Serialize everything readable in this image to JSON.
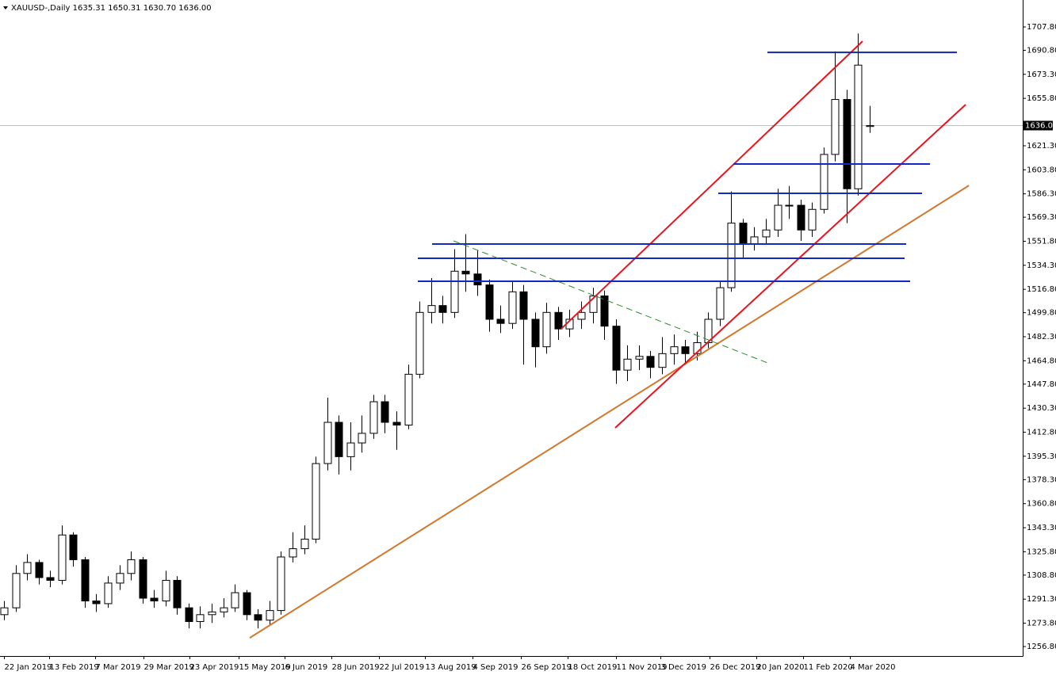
{
  "chart_data": {
    "type": "candlestick",
    "title": "XAUUSD-,Daily  1635.31 1650.31 1630.70 1636.00",
    "candles": {
      "open": [
        1280,
        1285,
        1310,
        1318,
        1307,
        1305,
        1338,
        1320,
        1290,
        1288,
        1303,
        1310,
        1320,
        1292,
        1290,
        1305,
        1285,
        1275,
        1280,
        1282,
        1285,
        1296,
        1280,
        1276,
        1283,
        1322,
        1328,
        1335,
        1390,
        1420,
        1395,
        1405,
        1412,
        1435,
        1420,
        1418,
        1455,
        1500,
        1505,
        1500,
        1530,
        1528,
        1520,
        1495,
        1492,
        1515,
        1495,
        1475,
        1500,
        1488,
        1495,
        1500,
        1512,
        1490,
        1458,
        1466,
        1468,
        1460,
        1470,
        1475,
        1470,
        1478,
        1495,
        1518,
        1565,
        1550,
        1555,
        1560,
        1578,
        1578,
        1560,
        1575,
        1615,
        1655,
        1590,
        1635.31
      ],
      "high": [
        1290,
        1316,
        1324,
        1320,
        1312,
        1345,
        1340,
        1322,
        1295,
        1308,
        1316,
        1326,
        1322,
        1298,
        1312,
        1308,
        1288,
        1286,
        1288,
        1292,
        1302,
        1298,
        1284,
        1290,
        1326,
        1340,
        1345,
        1395,
        1438,
        1425,
        1420,
        1425,
        1440,
        1440,
        1428,
        1462,
        1508,
        1525,
        1512,
        1546,
        1557,
        1545,
        1524,
        1505,
        1522,
        1520,
        1500,
        1507,
        1504,
        1502,
        1508,
        1518,
        1516,
        1495,
        1476,
        1476,
        1472,
        1482,
        1484,
        1480,
        1486,
        1500,
        1522,
        1588,
        1568,
        1562,
        1568,
        1590,
        1592,
        1582,
        1580,
        1620,
        1690,
        1662,
        1703,
        1650.31
      ],
      "low": [
        1276,
        1282,
        1305,
        1302,
        1300,
        1302,
        1315,
        1285,
        1282,
        1285,
        1298,
        1305,
        1288,
        1285,
        1286,
        1280,
        1270,
        1270,
        1274,
        1278,
        1282,
        1276,
        1270,
        1272,
        1280,
        1318,
        1324,
        1332,
        1385,
        1382,
        1385,
        1398,
        1408,
        1412,
        1400,
        1415,
        1452,
        1492,
        1492,
        1496,
        1515,
        1512,
        1486,
        1485,
        1488,
        1462,
        1460,
        1470,
        1480,
        1482,
        1488,
        1492,
        1480,
        1448,
        1450,
        1458,
        1452,
        1455,
        1462,
        1462,
        1465,
        1474,
        1490,
        1515,
        1540,
        1545,
        1550,
        1555,
        1568,
        1552,
        1555,
        1572,
        1610,
        1565,
        1585,
        1630.7
      ],
      "close": [
        1285,
        1310,
        1318,
        1307,
        1305,
        1338,
        1320,
        1290,
        1288,
        1303,
        1310,
        1320,
        1292,
        1290,
        1305,
        1285,
        1275,
        1280,
        1282,
        1285,
        1296,
        1280,
        1276,
        1283,
        1322,
        1328,
        1335,
        1390,
        1420,
        1395,
        1405,
        1412,
        1435,
        1420,
        1418,
        1455,
        1500,
        1505,
        1500,
        1530,
        1528,
        1520,
        1495,
        1492,
        1515,
        1495,
        1475,
        1500,
        1488,
        1495,
        1500,
        1512,
        1490,
        1458,
        1466,
        1468,
        1460,
        1470,
        1475,
        1470,
        1478,
        1495,
        1518,
        1565,
        1550,
        1555,
        1560,
        1578,
        1578,
        1560,
        1575,
        1615,
        1655,
        1590,
        1680,
        1636
      ]
    },
    "up_color": "#ffffff",
    "down_color": "#000000",
    "xlim": [
      -0.34,
      88.25
    ],
    "ylim": [
      1249.9,
      1727.4
    ],
    "xticks": [
      {
        "value": 0,
        "label": "22 Jan 2019"
      },
      {
        "value": 3.9,
        "label": "13 Feb 2019"
      },
      {
        "value": 7.9,
        "label": "7 Mar 2019"
      },
      {
        "value": 12.1,
        "label": "29 Mar 2019"
      },
      {
        "value": 16.1,
        "label": "23 Apr 2019"
      },
      {
        "value": 20.3,
        "label": "15 May 2019"
      },
      {
        "value": 24.3,
        "label": "6 Jun 2019"
      },
      {
        "value": 28.4,
        "label": "28 Jun 2019"
      },
      {
        "value": 32.5,
        "label": "22 Jul 2019"
      },
      {
        "value": 36.5,
        "label": "13 Aug 2019"
      },
      {
        "value": 40.6,
        "label": "4 Sep 2019"
      },
      {
        "value": 44.8,
        "label": "26 Sep 2019"
      },
      {
        "value": 48.8,
        "label": "18 Oct 2019"
      },
      {
        "value": 53.0,
        "label": "11 Nov 2019"
      },
      {
        "value": 56.9,
        "label": "3 Dec 2019"
      },
      {
        "value": 61.1,
        "label": "26 Dec 2019"
      },
      {
        "value": 65.2,
        "label": "20 Jan 2020"
      },
      {
        "value": 69.2,
        "label": "11 Feb 2020"
      },
      {
        "value": 73.3,
        "label": "4 Mar 2020"
      }
    ],
    "yticks": [
      {
        "value": 1707.8,
        "label": "1707.80"
      },
      {
        "value": 1690.8,
        "label": "1690.80"
      },
      {
        "value": 1673.3,
        "label": "1673.30"
      },
      {
        "value": 1655.8,
        "label": "1655.80"
      },
      {
        "value": 1621.3,
        "label": "1621.30"
      },
      {
        "value": 1603.8,
        "label": "1603.80"
      },
      {
        "value": 1586.3,
        "label": "1586.30"
      },
      {
        "value": 1569.3,
        "label": "1569.30"
      },
      {
        "value": 1551.8,
        "label": "1551.80"
      },
      {
        "value": 1534.3,
        "label": "1534.30"
      },
      {
        "value": 1516.8,
        "label": "1516.80"
      },
      {
        "value": 1499.8,
        "label": "1499.80"
      },
      {
        "value": 1482.3,
        "label": "1482.30"
      },
      {
        "value": 1464.8,
        "label": "1464.80"
      },
      {
        "value": 1447.8,
        "label": "1447.80"
      },
      {
        "value": 1430.3,
        "label": "1430.30"
      },
      {
        "value": 1412.8,
        "label": "1412.80"
      },
      {
        "value": 1395.3,
        "label": "1395.30"
      },
      {
        "value": 1378.3,
        "label": "1378.30"
      },
      {
        "value": 1360.8,
        "label": "1360.80"
      },
      {
        "value": 1343.3,
        "label": "1343.30"
      },
      {
        "value": 1325.8,
        "label": "1325.80"
      },
      {
        "value": 1308.8,
        "label": "1308.80"
      },
      {
        "value": 1291.3,
        "label": "1291.30"
      },
      {
        "value": 1273.8,
        "label": "1273.80"
      },
      {
        "value": 1256.8,
        "label": "1256.80"
      }
    ],
    "last_price": {
      "value": 1636,
      "label": "1636.00"
    },
    "drawings": [
      {
        "x": [
          21.29,
          83.59
        ],
        "y": [
          1263.1,
          1592.4
        ],
        "color": "#d2782d",
        "dashed": false
      },
      {
        "x": [
          52.95,
          83.31
        ],
        "y": [
          1416.0,
          1651.3
        ],
        "color": "#e8141e",
        "dashed": false
      },
      {
        "x": [
          48.28,
          74.38
        ],
        "y": [
          1488.1,
          1697.4
        ],
        "color": "#e8141e",
        "dashed": false
      },
      {
        "x": [
          66.14,
          82.55
        ],
        "y": [
          1689.3,
          1689.3
        ],
        "color": "#1428a0",
        "dashed": false
      },
      {
        "x": [
          63.19,
          80.22
        ],
        "y": [
          1608.0,
          1608.0
        ],
        "color": "#1428c8",
        "dashed": false
      },
      {
        "x": [
          61.88,
          79.53
        ],
        "y": [
          1586.7,
          1586.7
        ],
        "color": "#1428c8",
        "dashed": false
      },
      {
        "x": [
          37.09,
          78.16
        ],
        "y": [
          1549.8,
          1549.8
        ],
        "color": "#1428c8",
        "dashed": false
      },
      {
        "x": [
          35.85,
          78.02
        ],
        "y": [
          1539.4,
          1539.4
        ],
        "color": "#1428c8",
        "dashed": false
      },
      {
        "x": [
          35.85,
          78.5
        ],
        "y": [
          1522.7,
          1522.7
        ],
        "color": "#1428c8",
        "dashed": false
      },
      {
        "x": [
          38.94,
          66.14
        ],
        "y": [
          1552.1,
          1463.3
        ],
        "color": "#2e8b2e",
        "dashed": true
      }
    ]
  }
}
